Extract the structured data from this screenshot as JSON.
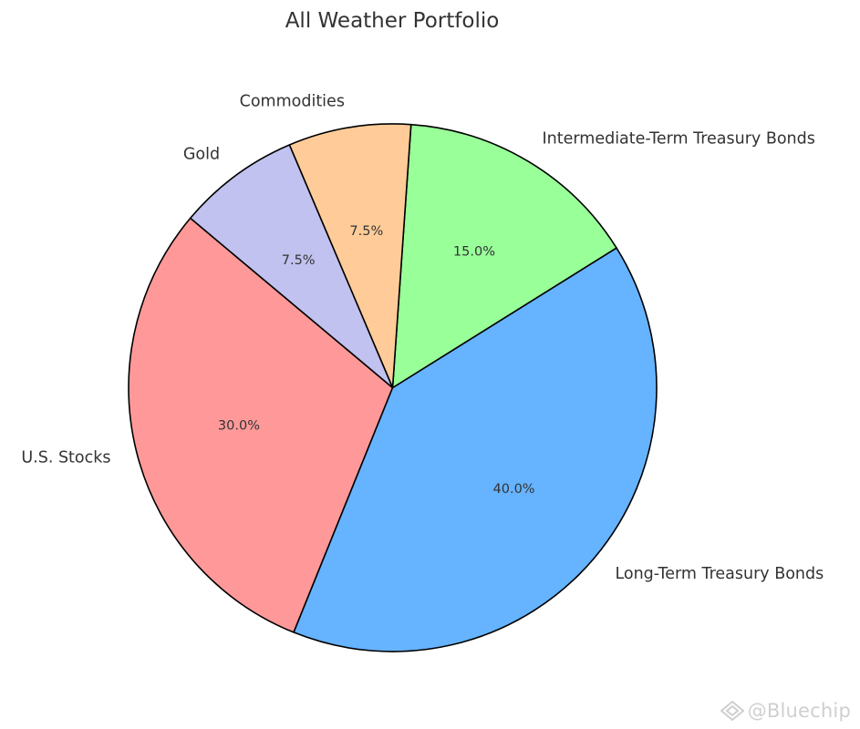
{
  "chart_data": {
    "type": "pie",
    "title": "All Weather Portfolio",
    "start_angle_deg": 140,
    "direction": "counterclockwise",
    "slices": [
      {
        "label": "U.S. Stocks",
        "value": 30.0,
        "pct_label": "30.0%",
        "color": "#ff9999"
      },
      {
        "label": "Long-Term Treasury Bonds",
        "value": 40.0,
        "pct_label": "40.0%",
        "color": "#66b3ff"
      },
      {
        "label": "Intermediate-Term Treasury Bonds",
        "value": 15.0,
        "pct_label": "15.0%",
        "color": "#99ff99"
      },
      {
        "label": "Commodities",
        "value": 7.5,
        "pct_label": "7.5%",
        "color": "#ffcc99"
      },
      {
        "label": "Gold",
        "value": 7.5,
        "pct_label": "7.5%",
        "color": "#c2c2f0"
      }
    ],
    "edge_color": "#000000"
  },
  "watermark": {
    "text": "@Bluechip",
    "icon": "bluechip-logo-icon"
  }
}
